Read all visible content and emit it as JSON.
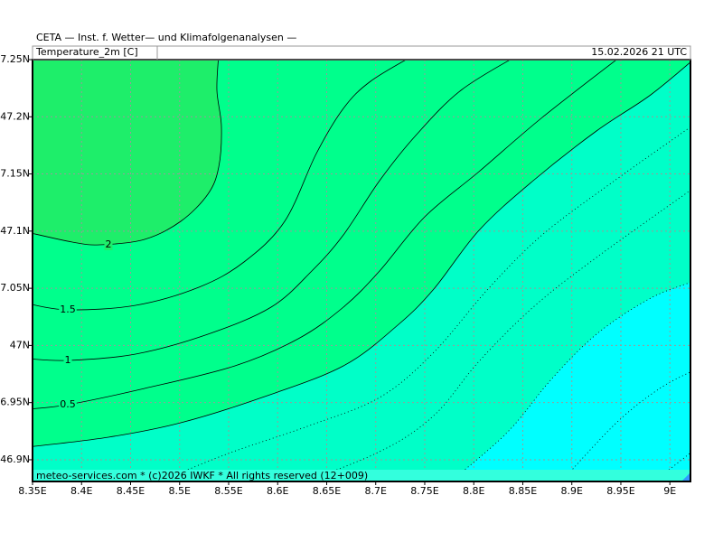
{
  "header": {
    "title": "CETA — Inst. f. Wetter— und Klimafolgenanalysen —",
    "field": "Temperature_2m [C]",
    "time": "15.02.2026 21 UTC"
  },
  "footer": "meteo-services.com * (c)2026 IWKF * All rights reserved (12+009)",
  "chart_data": {
    "type": "contour",
    "xlim": [
      8.35,
      9.021
    ],
    "ylim": [
      46.881,
      47.25
    ],
    "xticks": [
      {
        "value": 8.35,
        "label": "8.35E"
      },
      {
        "value": 8.4,
        "label": "8.4E"
      },
      {
        "value": 8.45,
        "label": "8.45E"
      },
      {
        "value": 8.5,
        "label": "8.5E"
      },
      {
        "value": 8.55,
        "label": "8.55E"
      },
      {
        "value": 8.6,
        "label": "8.6E"
      },
      {
        "value": 8.65,
        "label": "8.65E"
      },
      {
        "value": 8.7,
        "label": "8.7E"
      },
      {
        "value": 8.75,
        "label": "8.75E"
      },
      {
        "value": 8.8,
        "label": "8.8E"
      },
      {
        "value": 8.85,
        "label": "8.85E"
      },
      {
        "value": 8.9,
        "label": "8.9E"
      },
      {
        "value": 8.95,
        "label": "8.95E"
      },
      {
        "value": 9.0,
        "label": "9E"
      }
    ],
    "yticks": [
      {
        "value": 47.25,
        "label": "47.25N"
      },
      {
        "value": 47.2,
        "label": "47.2N"
      },
      {
        "value": 47.15,
        "label": "47.15N"
      },
      {
        "value": 47.1,
        "label": "47.1N"
      },
      {
        "value": 47.05,
        "label": "47.05N"
      },
      {
        "value": 47.0,
        "label": "47N"
      },
      {
        "value": 46.95,
        "label": "46.95N"
      },
      {
        "value": 46.9,
        "label": "46.9N"
      }
    ],
    "grid": true,
    "contours": [
      {
        "level": 2
      },
      {
        "level": 1.5
      },
      {
        "level": 1
      },
      {
        "level": 0.5
      },
      {
        "level": 0
      },
      {
        "level": -0.5
      },
      {
        "level": -1
      },
      {
        "level": -1.5
      },
      {
        "level": -2
      },
      {
        "level": -2.5
      }
    ]
  }
}
